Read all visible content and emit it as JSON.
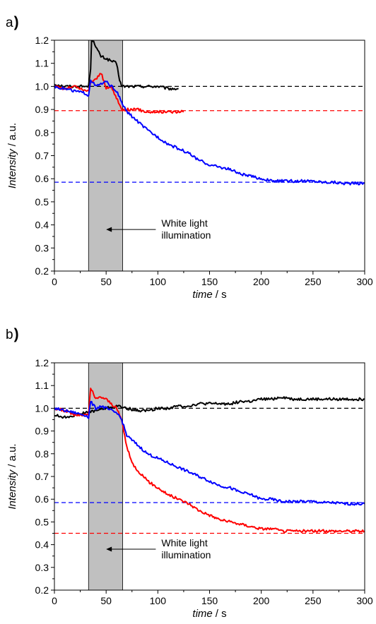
{
  "chart_data": [
    {
      "panel": "a",
      "type": "line",
      "xlabel": "time",
      "xunit": "/ s",
      "ylabel": "Intensity",
      "yunit": "/ a.u.",
      "xlim": [
        0,
        300
      ],
      "ylim": [
        0.2,
        1.2
      ],
      "xticks": [
        0,
        50,
        100,
        150,
        200,
        250,
        300
      ],
      "yticks": [
        0.2,
        0.3,
        0.4,
        0.5,
        0.6,
        0.7,
        0.8,
        0.9,
        1.0,
        1.1,
        1.2
      ],
      "shaded_region": {
        "x": [
          33,
          66
        ],
        "color": "#c0c0c0"
      },
      "annotation": {
        "lines": [
          "White light",
          "illumination"
        ],
        "arrow_from": [
          98,
          0.38
        ],
        "arrow_to": [
          50,
          0.38
        ]
      },
      "reference_lines": [
        {
          "color": "#000000",
          "y": 1.0
        },
        {
          "color": "#ff0000",
          "y": 0.895
        },
        {
          "color": "#0000ff",
          "y": 0.585
        }
      ],
      "series": [
        {
          "color": "#000000",
          "x": [
            0,
            10,
            20,
            30,
            33,
            35,
            36,
            38,
            40,
            45,
            50,
            55,
            60,
            63,
            65,
            70,
            80,
            90,
            100,
            110,
            120
          ],
          "y": [
            1.01,
            1.0,
            1.0,
            1.0,
            1.0,
            1.08,
            1.2,
            1.2,
            1.17,
            1.13,
            1.12,
            1.11,
            1.1,
            1.03,
            1.0,
            1.0,
            1.0,
            1.0,
            1.0,
            0.99,
            0.99
          ]
        },
        {
          "color": "#ff0000",
          "x": [
            0,
            10,
            20,
            30,
            33,
            35,
            40,
            45,
            50,
            55,
            60,
            63,
            65,
            70,
            80,
            90,
            100,
            110,
            125
          ],
          "y": [
            1.0,
            0.99,
            1.0,
            0.98,
            0.98,
            1.02,
            1.03,
            1.06,
            0.99,
            1.0,
            0.95,
            0.92,
            0.9,
            0.9,
            0.9,
            0.89,
            0.89,
            0.89,
            0.89
          ]
        },
        {
          "color": "#0000ff",
          "x": [
            0,
            10,
            20,
            30,
            33,
            35,
            40,
            45,
            50,
            55,
            60,
            65,
            70,
            80,
            90,
            100,
            110,
            120,
            130,
            140,
            150,
            160,
            170,
            180,
            190,
            200,
            210,
            220,
            230,
            240,
            250,
            260,
            270,
            280,
            290,
            300
          ],
          "y": [
            1.0,
            0.99,
            0.98,
            0.97,
            0.96,
            1.03,
            1.0,
            1.01,
            1.02,
            1.0,
            0.98,
            0.93,
            0.89,
            0.85,
            0.81,
            0.78,
            0.75,
            0.73,
            0.71,
            0.68,
            0.66,
            0.65,
            0.64,
            0.62,
            0.61,
            0.6,
            0.59,
            0.59,
            0.59,
            0.59,
            0.59,
            0.585,
            0.585,
            0.58,
            0.58,
            0.58
          ]
        }
      ]
    },
    {
      "panel": "b",
      "type": "line",
      "xlabel": "time",
      "xunit": "/ s",
      "ylabel": "Intensity",
      "yunit": "/ a.u.",
      "xlim": [
        0,
        300
      ],
      "ylim": [
        0.2,
        1.2
      ],
      "xticks": [
        0,
        50,
        100,
        150,
        200,
        250,
        300
      ],
      "yticks": [
        0.2,
        0.3,
        0.4,
        0.5,
        0.6,
        0.7,
        0.8,
        0.9,
        1.0,
        1.1,
        1.2
      ],
      "shaded_region": {
        "x": [
          33,
          66
        ],
        "color": "#c0c0c0"
      },
      "annotation": {
        "lines": [
          "White light",
          "illumination"
        ],
        "arrow_from": [
          98,
          0.38
        ],
        "arrow_to": [
          50,
          0.38
        ]
      },
      "reference_lines": [
        {
          "color": "#000000",
          "y": 1.0
        },
        {
          "color": "#0000ff",
          "y": 0.585
        },
        {
          "color": "#ff0000",
          "y": 0.45
        }
      ],
      "series": [
        {
          "color": "#000000",
          "x": [
            0,
            10,
            20,
            30,
            40,
            50,
            60,
            70,
            80,
            90,
            100,
            110,
            120,
            130,
            140,
            150,
            160,
            170,
            180,
            190,
            200,
            210,
            220,
            230,
            240,
            250,
            260,
            270,
            280,
            290,
            300
          ],
          "y": [
            0.97,
            0.96,
            0.97,
            0.98,
            0.99,
            1.0,
            1.01,
            1.0,
            0.99,
            0.99,
            1.0,
            1.0,
            1.01,
            1.01,
            1.02,
            1.02,
            1.02,
            1.02,
            1.03,
            1.03,
            1.04,
            1.04,
            1.05,
            1.04,
            1.04,
            1.04,
            1.04,
            1.04,
            1.04,
            1.04,
            1.04
          ]
        },
        {
          "color": "#ff0000",
          "x": [
            0,
            10,
            20,
            30,
            33,
            35,
            40,
            45,
            50,
            55,
            60,
            65,
            70,
            75,
            80,
            90,
            100,
            110,
            120,
            130,
            140,
            150,
            160,
            170,
            180,
            190,
            200,
            210,
            220,
            230,
            240,
            250,
            260,
            270,
            280,
            290,
            300
          ],
          "y": [
            1.0,
            0.99,
            0.97,
            0.97,
            0.97,
            1.09,
            1.04,
            1.05,
            1.04,
            1.02,
            1.0,
            0.95,
            0.83,
            0.76,
            0.73,
            0.68,
            0.65,
            0.62,
            0.6,
            0.58,
            0.55,
            0.53,
            0.51,
            0.5,
            0.49,
            0.48,
            0.47,
            0.47,
            0.46,
            0.46,
            0.46,
            0.46,
            0.46,
            0.46,
            0.46,
            0.46,
            0.46
          ]
        },
        {
          "color": "#0000ff",
          "x": [
            0,
            10,
            20,
            30,
            33,
            35,
            40,
            45,
            50,
            55,
            60,
            65,
            70,
            80,
            90,
            100,
            110,
            120,
            130,
            140,
            150,
            160,
            170,
            180,
            190,
            200,
            210,
            220,
            230,
            240,
            250,
            260,
            270,
            280,
            290,
            300
          ],
          "y": [
            1.0,
            0.99,
            0.98,
            0.97,
            0.96,
            1.03,
            1.0,
            1.01,
            1.0,
            0.99,
            0.98,
            0.95,
            0.88,
            0.84,
            0.8,
            0.78,
            0.76,
            0.74,
            0.72,
            0.7,
            0.68,
            0.66,
            0.65,
            0.63,
            0.62,
            0.6,
            0.6,
            0.59,
            0.59,
            0.59,
            0.59,
            0.585,
            0.585,
            0.58,
            0.58,
            0.58
          ]
        }
      ]
    }
  ]
}
